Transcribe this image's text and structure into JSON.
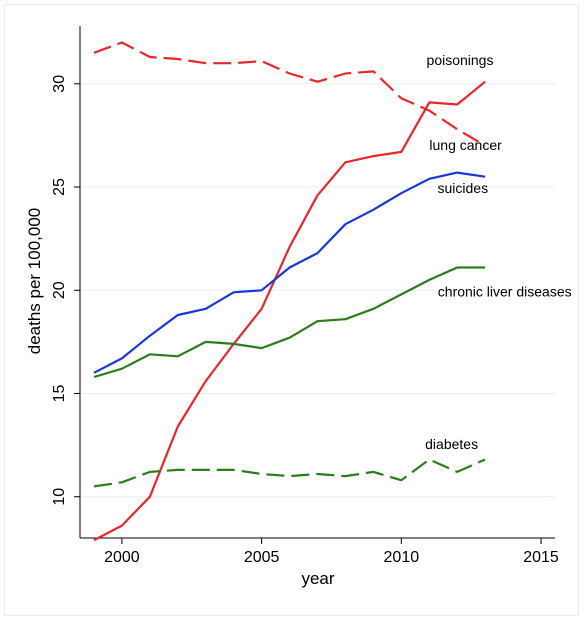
{
  "chart_data": {
    "type": "line",
    "title": "",
    "xlabel": "year",
    "ylabel": "deaths per 100,000",
    "xlim": [
      1998.5,
      2015.5
    ],
    "ylim": [
      8.0,
      32.8
    ],
    "xticks": [
      2000,
      2005,
      2010,
      2015
    ],
    "yticks": [
      10,
      15,
      20,
      25,
      30
    ],
    "grid": "horizontal",
    "legend": "none (inline labels near lines)",
    "series": [
      {
        "name": "poisonings",
        "color": "#e8262b",
        "dash": "solid",
        "x": [
          1999,
          2000,
          2001,
          2002,
          2003,
          2004,
          2005,
          2006,
          2007,
          2008,
          2009,
          2010,
          2011,
          2012,
          2013
        ],
        "values": [
          7.9,
          8.6,
          10.0,
          13.4,
          15.6,
          17.4,
          19.1,
          22.1,
          24.6,
          26.2,
          26.5,
          26.7,
          29.1,
          29.0,
          30.1
        ]
      },
      {
        "name": "lung cancer",
        "color": "#e8262b",
        "dash": "dashed",
        "x": [
          1999,
          2000,
          2001,
          2002,
          2003,
          2004,
          2005,
          2006,
          2007,
          2008,
          2009,
          2010,
          2011,
          2012,
          2013
        ],
        "values": [
          31.5,
          32.0,
          31.3,
          31.2,
          31.0,
          31.0,
          31.1,
          30.5,
          30.1,
          30.5,
          30.6,
          29.3,
          28.7,
          27.8,
          27.0
        ]
      },
      {
        "name": "suicides",
        "color": "#1a35e0",
        "dash": "solid",
        "x": [
          1999,
          2000,
          2001,
          2002,
          2003,
          2004,
          2005,
          2006,
          2007,
          2008,
          2009,
          2010,
          2011,
          2012,
          2013
        ],
        "values": [
          16.0,
          16.7,
          17.8,
          18.8,
          19.1,
          19.9,
          20.0,
          21.1,
          21.8,
          23.2,
          23.9,
          24.7,
          25.4,
          25.7,
          25.5
        ]
      },
      {
        "name": "chronic liver diseases",
        "color": "#2a7d1a",
        "dash": "solid",
        "x": [
          1999,
          2000,
          2001,
          2002,
          2003,
          2004,
          2005,
          2006,
          2007,
          2008,
          2009,
          2010,
          2011,
          2012,
          2013
        ],
        "values": [
          15.8,
          16.2,
          16.9,
          16.8,
          17.5,
          17.4,
          17.2,
          17.7,
          18.5,
          18.6,
          19.1,
          19.8,
          20.5,
          21.1,
          21.1
        ]
      },
      {
        "name": "diabetes",
        "color": "#2a7d1a",
        "dash": "dashed",
        "x": [
          1999,
          2000,
          2001,
          2002,
          2003,
          2004,
          2005,
          2006,
          2007,
          2008,
          2009,
          2010,
          2011,
          2012,
          2013
        ],
        "values": [
          10.5,
          10.7,
          11.2,
          11.3,
          11.3,
          11.3,
          11.1,
          11.0,
          11.1,
          11.0,
          11.2,
          10.8,
          11.8,
          11.2,
          11.8
        ]
      }
    ]
  }
}
